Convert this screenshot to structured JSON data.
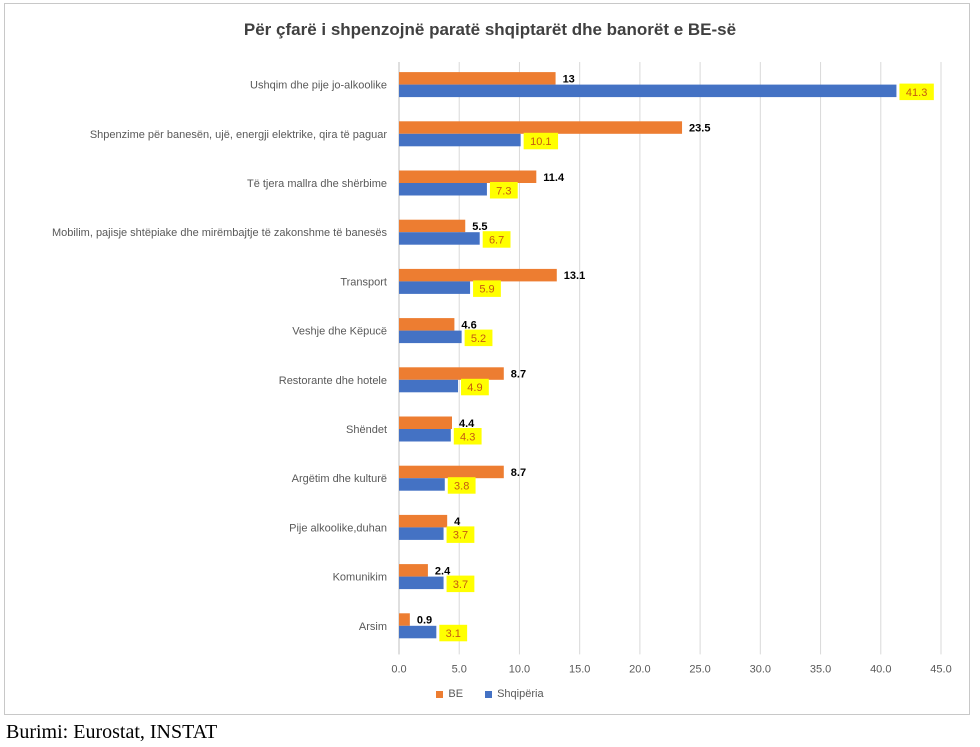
{
  "colors": {
    "be": "#ED7D31",
    "al": "#4472C4",
    "highlight": "#FFFF00",
    "grid": "#d9d9d9",
    "axis_text": "#595959"
  },
  "source": "Burimi: Eurostat, INSTAT",
  "chart_data": {
    "type": "bar",
    "orientation": "horizontal",
    "title": "Për çfarë i shpenzojnë paratë shqiptarët dhe banorët e BE-së",
    "categories": [
      "Ushqim dhe pije jo-alkoolike",
      "Shpenzime për banesën, ujë, energji elektrike, qira të paguar",
      "Të tjera mallra dhe shërbime",
      "Mobilim, pajisje shtëpiake dhe mirëmbajtje të zakonshme të banesës",
      "Transport",
      "Veshje dhe Këpucë",
      "Restorante dhe hotele",
      "Shëndet",
      "Argëtim dhe kulturë",
      "Pije alkoolike,duhan",
      "Komunikim",
      "Arsim"
    ],
    "series": [
      {
        "name": "BE",
        "values": [
          13,
          23.5,
          11.4,
          5.5,
          13.1,
          4.6,
          8.7,
          4.4,
          8.7,
          4,
          2.4,
          0.9
        ],
        "labels": [
          "13",
          "23.5",
          "11.4",
          "5.5",
          "13.1",
          "4.6",
          "8.7",
          "4.4",
          "8.7",
          "4",
          "2.4",
          "0.9"
        ]
      },
      {
        "name": "Shqipëria",
        "values": [
          41.3,
          10.1,
          7.3,
          6.7,
          5.9,
          5.2,
          4.9,
          4.3,
          3.8,
          3.7,
          3.7,
          3.1
        ],
        "labels": [
          "41.3",
          "10.1",
          "7.3",
          "6.7",
          "5.9",
          "5.2",
          "4.9",
          "4.3",
          "3.8",
          "3.7",
          "3.7",
          "3.1"
        ]
      }
    ],
    "xlim": [
      0,
      45
    ],
    "xticks": [
      "0.0",
      "5.0",
      "10.0",
      "15.0",
      "20.0",
      "25.0",
      "30.0",
      "35.0",
      "40.0",
      "45.0"
    ],
    "grid": true,
    "legend_position": "bottom"
  }
}
